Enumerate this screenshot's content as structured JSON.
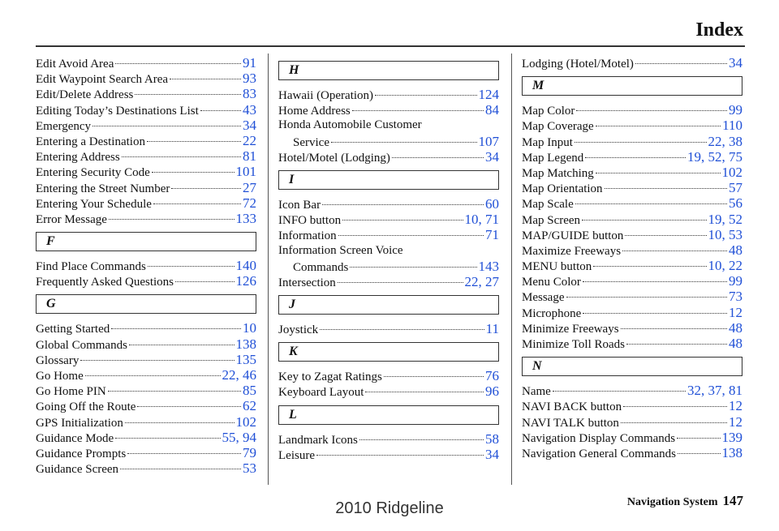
{
  "header": {
    "title": "Index"
  },
  "columns": [
    {
      "items": [
        {
          "term": [
            "Edit Avoid Area"
          ],
          "pages": "91"
        },
        {
          "term": [
            "Edit Waypoint Search Area"
          ],
          "pages": "93"
        },
        {
          "term": [
            "Edit/Delete Address"
          ],
          "pages": "83"
        },
        {
          "term": [
            "Editing Today’s Destinations List"
          ],
          "pages": "43"
        },
        {
          "term": [
            "Emergency"
          ],
          "pages": "34"
        },
        {
          "term": [
            "Entering a Destination"
          ],
          "pages": "22"
        },
        {
          "term": [
            "Entering Address"
          ],
          "pages": "81"
        },
        {
          "term": [
            "Entering Security Code"
          ],
          "pages": "101"
        },
        {
          "term": [
            "Entering the Street Number"
          ],
          "pages": "27"
        },
        {
          "term": [
            "Entering Your Schedule"
          ],
          "pages": "72"
        },
        {
          "term": [
            "Error Message"
          ],
          "pages": "133"
        },
        {
          "section": "F"
        },
        {
          "term": [
            "Find Place Commands"
          ],
          "pages": "140"
        },
        {
          "term": [
            "Frequently Asked Questions"
          ],
          "pages": "126"
        },
        {
          "section": "G"
        },
        {
          "term": [
            "Getting Started"
          ],
          "pages": "10"
        },
        {
          "term": [
            "Global Commands"
          ],
          "pages": "138"
        },
        {
          "term": [
            "Glossary"
          ],
          "pages": "135"
        },
        {
          "term": [
            "Go Home"
          ],
          "pages": "22, 46"
        },
        {
          "term": [
            "Go Home PIN"
          ],
          "pages": "85"
        },
        {
          "term": [
            "Going Off the Route"
          ],
          "pages": "62"
        },
        {
          "term": [
            "GPS Initialization"
          ],
          "pages": "102"
        },
        {
          "term": [
            "Guidance Mode"
          ],
          "pages": "55, 94"
        },
        {
          "term": [
            "Guidance Prompts"
          ],
          "pages": "79"
        },
        {
          "term": [
            "Guidance Screen"
          ],
          "pages": "53"
        }
      ]
    },
    {
      "items": [
        {
          "section": "H"
        },
        {
          "term": [
            "Hawaii (Operation)"
          ],
          "pages": "124"
        },
        {
          "term": [
            "Home Address"
          ],
          "pages": "84"
        },
        {
          "term": [
            "Honda Automobile Customer",
            "Service"
          ],
          "pages": "107"
        },
        {
          "term": [
            "Hotel/Motel (Lodging)"
          ],
          "pages": "34"
        },
        {
          "section": "I"
        },
        {
          "term": [
            "Icon Bar"
          ],
          "pages": "60"
        },
        {
          "term": [
            "INFO button"
          ],
          "pages": "10, 71"
        },
        {
          "term": [
            "Information"
          ],
          "pages": "71"
        },
        {
          "term": [
            "Information Screen Voice",
            "Commands"
          ],
          "pages": "143"
        },
        {
          "term": [
            "Intersection"
          ],
          "pages": "22, 27"
        },
        {
          "section": "J"
        },
        {
          "term": [
            "Joystick"
          ],
          "pages": "11"
        },
        {
          "section": "K"
        },
        {
          "term": [
            "Key to Zagat Ratings"
          ],
          "pages": "76"
        },
        {
          "term": [
            "Keyboard Layout"
          ],
          "pages": "96"
        },
        {
          "section": "L"
        },
        {
          "term": [
            "Landmark Icons"
          ],
          "pages": "58"
        },
        {
          "term": [
            "Leisure"
          ],
          "pages": "34"
        }
      ]
    },
    {
      "items": [
        {
          "term": [
            "Lodging (Hotel/Motel)"
          ],
          "pages": "34"
        },
        {
          "section": "M"
        },
        {
          "term": [
            "Map Color"
          ],
          "pages": "99"
        },
        {
          "term": [
            "Map Coverage"
          ],
          "pages": "110"
        },
        {
          "term": [
            "Map Input"
          ],
          "pages": "22, 38"
        },
        {
          "term": [
            "Map Legend"
          ],
          "pages": "19, 52, 75"
        },
        {
          "term": [
            "Map Matching"
          ],
          "pages": "102"
        },
        {
          "term": [
            "Map Orientation"
          ],
          "pages": "57"
        },
        {
          "term": [
            "Map Scale"
          ],
          "pages": "56"
        },
        {
          "term": [
            "Map Screen"
          ],
          "pages": "19, 52"
        },
        {
          "term": [
            "MAP/GUIDE button"
          ],
          "pages": "10, 53"
        },
        {
          "term": [
            "Maximize Freeways"
          ],
          "pages": "48"
        },
        {
          "term": [
            "MENU button"
          ],
          "pages": "10, 22"
        },
        {
          "term": [
            "Menu Color"
          ],
          "pages": "99"
        },
        {
          "term": [
            "Message"
          ],
          "pages": "73"
        },
        {
          "term": [
            "Microphone"
          ],
          "pages": "12"
        },
        {
          "term": [
            "Minimize Freeways"
          ],
          "pages": "48"
        },
        {
          "term": [
            "Minimize Toll Roads"
          ],
          "pages": "48"
        },
        {
          "section": "N"
        },
        {
          "term": [
            "Name"
          ],
          "pages": "32, 37, 81"
        },
        {
          "term": [
            "NAVI BACK button"
          ],
          "pages": "12"
        },
        {
          "term": [
            "NAVI TALK button"
          ],
          "pages": "12"
        },
        {
          "term": [
            "Navigation Display Commands"
          ],
          "pages": "139"
        },
        {
          "term": [
            "Navigation General Commands"
          ],
          "pages": "138"
        }
      ]
    }
  ],
  "footer": {
    "section": "Navigation System",
    "page": "147",
    "watermark": "2010 Ridgeline"
  }
}
